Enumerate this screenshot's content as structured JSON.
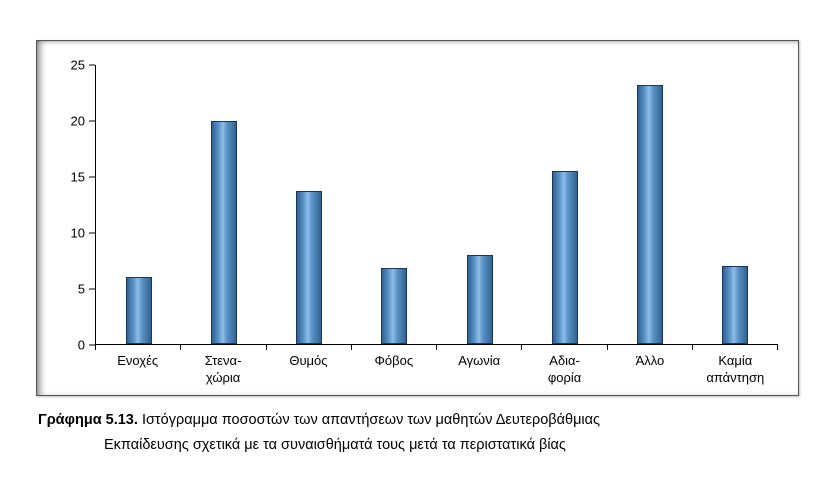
{
  "chart_data": {
    "type": "bar",
    "title": "",
    "xlabel": "",
    "ylabel": "",
    "categories": [
      "Ενοχές",
      "Στενα-\nχώρια",
      "Θυμός",
      "Φόβος",
      "Αγωνία",
      "Αδια-\nφορία",
      "Άλλο",
      "Καμία\nαπάντηση"
    ],
    "values": [
      6,
      20,
      13.7,
      6.8,
      8,
      15.5,
      23.2,
      7
    ],
    "ylim": [
      0,
      25
    ],
    "yticks": [
      0,
      5,
      10,
      15,
      20,
      25
    ],
    "grid": false,
    "legend_position": "none",
    "bar_color_center": "#8fbde6",
    "bar_color_edge": "#31628f",
    "bar_border_color": "#17375e",
    "axis_color": "#000000"
  },
  "caption": {
    "label": "Γράφημα 5.13.",
    "line1": "Ιστόγραμμα ποσοστών των απαντήσεων των μαθητών Δευτεροβάθμιας",
    "line2": "Εκπαίδευσης σχετικά με τα συναισθήματά τους μετά τα περιστατικά βίας"
  }
}
